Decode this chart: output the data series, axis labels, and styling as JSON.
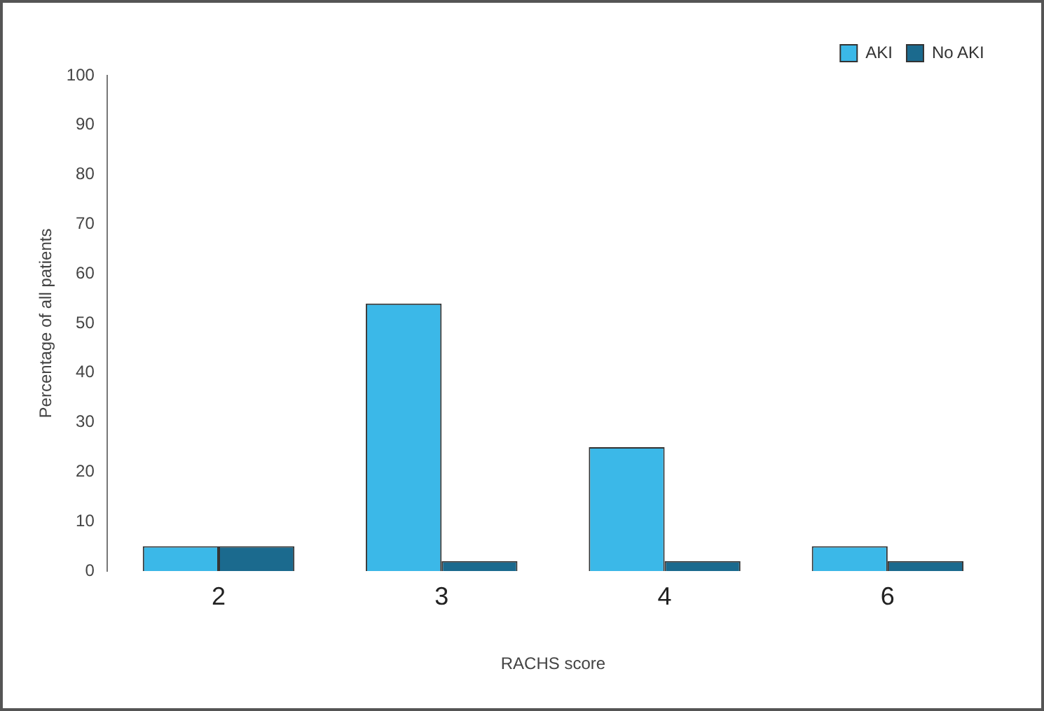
{
  "chart_data": {
    "type": "bar",
    "xlabel": "RACHS score",
    "ylabel": "Percentage of all patients",
    "categories": [
      "2",
      "3",
      "4",
      "6"
    ],
    "series": [
      {
        "name": "AKI",
        "color": "#3bb8e8",
        "values": [
          5,
          54,
          25,
          5
        ]
      },
      {
        "name": "No AKI",
        "color": "#1b6a8e",
        "values": [
          5,
          2,
          2,
          2
        ]
      }
    ],
    "ylim": [
      0,
      100
    ],
    "yticks": [
      0,
      10,
      20,
      30,
      40,
      50,
      60,
      70,
      80,
      90,
      100
    ],
    "grid": false,
    "legend": "top right"
  }
}
